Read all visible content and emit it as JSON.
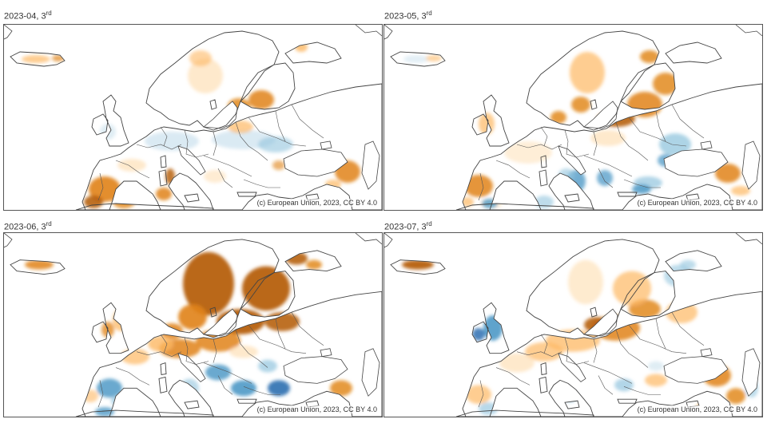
{
  "panels": [
    {
      "title": "2023-04, 3",
      "title_sup": "rd",
      "copyright": "(c) European Union, 2023, CC BY 4.0",
      "dominant_pattern": "dry-south-west-and-baltic, wet-central"
    },
    {
      "title": "2023-05, 3",
      "title_sup": "rd",
      "copyright": "(c) European Union, 2023, CC BY 4.0",
      "dominant_pattern": "dry-north-and-baltic, wet-balkans-italy"
    },
    {
      "title": "2023-06, 3",
      "title_sup": "rd",
      "copyright": "(c) European Union, 2023, CC BY 4.0",
      "dominant_pattern": "very-dry-north-and-central, wet-iberia-balkans"
    },
    {
      "title": "2023-07, 3",
      "title_sup": "rd",
      "copyright": "(c) European Union, 2023, CC BY 4.0",
      "dominant_pattern": "dry-central-east, wet-british-isles"
    }
  ],
  "colors": {
    "dry_strong": "#b35806",
    "dry_medium": "#e08214",
    "dry_light": "#fdb863",
    "dry_faint": "#fee0b6",
    "wet_faint": "#d1e5f0",
    "wet_light": "#92c5de",
    "wet_medium": "#4393c3",
    "wet_strong": "#2166ac",
    "land": "#ffffff",
    "coastline": "#444444"
  }
}
